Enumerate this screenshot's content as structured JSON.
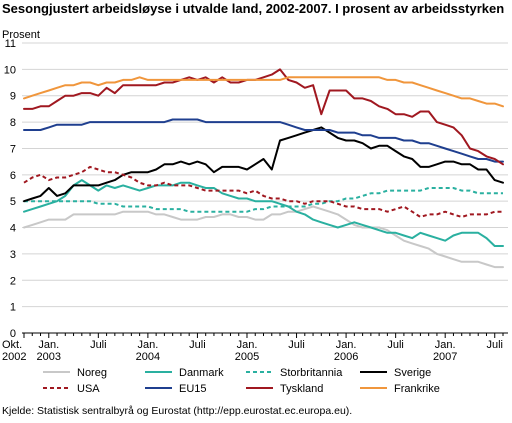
{
  "title": "Sesongjustert arbeidsløyse i utvalde land, 2002-2007. I prosent av arbeidsstyrken",
  "source": "Kjelde: Statistisk sentralbyrå og Eurostat (http://epp.eurostat.ec.europa.eu).",
  "chart_data": {
    "type": "line",
    "title": "Sesongjustert arbeidsløyse i utvalde land, 2002-2007. I prosent av arbeidsstyrken",
    "ylabel": "Prosent",
    "xlabel": "",
    "ylim": [
      0,
      11
    ],
    "yticks": [
      "0",
      "1",
      "2",
      "3",
      "4",
      "5",
      "6",
      "7",
      "8",
      "9",
      "10",
      "11"
    ],
    "grid": true,
    "x": [
      "2002-10",
      "2002-11",
      "2002-12",
      "2003-01",
      "2003-02",
      "2003-03",
      "2003-04",
      "2003-05",
      "2003-06",
      "2003-07",
      "2003-08",
      "2003-09",
      "2003-10",
      "2003-11",
      "2003-12",
      "2004-01",
      "2004-02",
      "2004-03",
      "2004-04",
      "2004-05",
      "2004-06",
      "2004-07",
      "2004-08",
      "2004-09",
      "2004-10",
      "2004-11",
      "2004-12",
      "2005-01",
      "2005-02",
      "2005-03",
      "2005-04",
      "2005-05",
      "2005-06",
      "2005-07",
      "2005-08",
      "2005-09",
      "2005-10",
      "2005-11",
      "2005-12",
      "2006-01",
      "2006-02",
      "2006-03",
      "2006-04",
      "2006-05",
      "2006-06",
      "2006-07",
      "2006-08",
      "2006-09",
      "2006-10",
      "2006-11",
      "2006-12",
      "2007-01",
      "2007-02",
      "2007-03",
      "2007-04",
      "2007-05",
      "2007-06",
      "2007-07",
      "2007-08"
    ],
    "xtick_labels": [
      {
        "index": 0,
        "lines": [
          "Okt.",
          "2002"
        ]
      },
      {
        "index": 3,
        "lines": [
          "Jan.",
          "2003"
        ]
      },
      {
        "index": 9,
        "lines": [
          "Juli"
        ]
      },
      {
        "index": 15,
        "lines": [
          "Jan.",
          "2004"
        ]
      },
      {
        "index": 21,
        "lines": [
          "Juli"
        ]
      },
      {
        "index": 27,
        "lines": [
          "Jan.",
          "2005"
        ]
      },
      {
        "index": 33,
        "lines": [
          "Juli"
        ]
      },
      {
        "index": 39,
        "lines": [
          "Jan.",
          "2006"
        ]
      },
      {
        "index": 45,
        "lines": [
          "Juli"
        ]
      },
      {
        "index": 51,
        "lines": [
          "Jan.",
          "2007"
        ]
      },
      {
        "index": 57,
        "lines": [
          "Juli"
        ]
      }
    ],
    "legend_placement": "bottom",
    "series": [
      {
        "name": "Noreg",
        "color": "#c8c8c8",
        "dash": "solid",
        "values": [
          4.0,
          4.1,
          4.2,
          4.3,
          4.3,
          4.3,
          4.5,
          4.5,
          4.5,
          4.5,
          4.5,
          4.5,
          4.6,
          4.6,
          4.6,
          4.6,
          4.5,
          4.5,
          4.4,
          4.3,
          4.3,
          4.3,
          4.4,
          4.4,
          4.5,
          4.5,
          4.4,
          4.4,
          4.3,
          4.3,
          4.5,
          4.5,
          4.6,
          4.6,
          4.7,
          4.8,
          4.7,
          4.6,
          4.5,
          4.3,
          4.1,
          4.0,
          4.0,
          4.0,
          3.9,
          3.7,
          3.5,
          3.4,
          3.3,
          3.2,
          3.0,
          2.9,
          2.8,
          2.7,
          2.7,
          2.7,
          2.6,
          2.5,
          2.5
        ]
      },
      {
        "name": "Danmark",
        "color": "#2ab0a0",
        "dash": "solid",
        "values": [
          4.6,
          4.7,
          4.8,
          4.9,
          5.0,
          5.2,
          5.6,
          5.8,
          5.6,
          5.4,
          5.6,
          5.5,
          5.6,
          5.5,
          5.4,
          5.5,
          5.6,
          5.6,
          5.6,
          5.7,
          5.7,
          5.6,
          5.5,
          5.5,
          5.3,
          5.2,
          5.1,
          5.1,
          5.0,
          5.0,
          5.0,
          4.9,
          4.8,
          4.6,
          4.5,
          4.3,
          4.2,
          4.1,
          4.0,
          4.1,
          4.2,
          4.1,
          4.0,
          3.9,
          3.8,
          3.8,
          3.7,
          3.6,
          3.8,
          3.7,
          3.6,
          3.5,
          3.7,
          3.8,
          3.8,
          3.8,
          3.6,
          3.3,
          3.3
        ]
      },
      {
        "name": "Storbritannia",
        "color": "#2ab0a0",
        "dash": "dash",
        "values": [
          5.0,
          5.0,
          5.0,
          5.0,
          5.0,
          5.0,
          5.0,
          5.0,
          5.0,
          4.9,
          4.9,
          4.9,
          4.8,
          4.8,
          4.8,
          4.8,
          4.7,
          4.7,
          4.7,
          4.7,
          4.6,
          4.6,
          4.6,
          4.6,
          4.6,
          4.6,
          4.6,
          4.6,
          4.7,
          4.7,
          4.8,
          4.8,
          4.8,
          4.8,
          4.8,
          4.9,
          4.9,
          5.0,
          5.0,
          5.1,
          5.1,
          5.2,
          5.3,
          5.3,
          5.4,
          5.4,
          5.4,
          5.4,
          5.4,
          5.5,
          5.5,
          5.5,
          5.5,
          5.4,
          5.4,
          5.3,
          5.3,
          5.3,
          5.3
        ]
      },
      {
        "name": "Sverige",
        "color": "#000000",
        "dash": "solid",
        "values": [
          5.0,
          5.1,
          5.2,
          5.5,
          5.2,
          5.3,
          5.6,
          5.6,
          5.6,
          5.6,
          5.7,
          5.8,
          6.0,
          6.1,
          6.1,
          6.1,
          6.2,
          6.4,
          6.4,
          6.5,
          6.4,
          6.5,
          6.4,
          6.1,
          6.3,
          6.3,
          6.3,
          6.2,
          6.4,
          6.6,
          6.2,
          7.3,
          7.4,
          7.5,
          7.6,
          7.7,
          7.8,
          7.6,
          7.4,
          7.3,
          7.3,
          7.2,
          7.0,
          7.1,
          7.1,
          6.9,
          6.7,
          6.6,
          6.3,
          6.3,
          6.4,
          6.5,
          6.5,
          6.4,
          6.4,
          6.2,
          6.2,
          5.8,
          5.7
        ]
      },
      {
        "name": "USA",
        "color": "#a01820",
        "dash": "dash",
        "values": [
          5.7,
          5.9,
          6.0,
          5.8,
          5.9,
          5.9,
          6.0,
          6.1,
          6.3,
          6.2,
          6.1,
          6.1,
          6.0,
          5.9,
          5.7,
          5.6,
          5.6,
          5.7,
          5.6,
          5.6,
          5.6,
          5.5,
          5.4,
          5.4,
          5.4,
          5.4,
          5.4,
          5.3,
          5.4,
          5.2,
          5.1,
          5.1,
          5.0,
          5.0,
          4.9,
          5.0,
          5.0,
          5.0,
          4.9,
          4.8,
          4.8,
          4.7,
          4.7,
          4.7,
          4.6,
          4.7,
          4.8,
          4.6,
          4.4,
          4.5,
          4.5,
          4.6,
          4.5,
          4.4,
          4.5,
          4.5,
          4.5,
          4.6,
          4.6
        ]
      },
      {
        "name": "EU15",
        "color": "#1f3f8f",
        "dash": "solid",
        "values": [
          7.7,
          7.7,
          7.7,
          7.8,
          7.9,
          7.9,
          7.9,
          7.9,
          8.0,
          8.0,
          8.0,
          8.0,
          8.0,
          8.0,
          8.0,
          8.0,
          8.0,
          8.0,
          8.1,
          8.1,
          8.1,
          8.1,
          8.0,
          8.0,
          8.0,
          8.0,
          8.0,
          8.0,
          8.0,
          8.0,
          8.0,
          8.0,
          7.9,
          7.8,
          7.7,
          7.7,
          7.7,
          7.7,
          7.6,
          7.6,
          7.6,
          7.5,
          7.5,
          7.4,
          7.4,
          7.4,
          7.3,
          7.3,
          7.2,
          7.2,
          7.1,
          7.0,
          6.9,
          6.8,
          6.7,
          6.6,
          6.6,
          6.5,
          6.5
        ]
      },
      {
        "name": "Tyskland",
        "color": "#a01820",
        "dash": "solid",
        "values": [
          8.5,
          8.5,
          8.6,
          8.6,
          8.8,
          9.0,
          9.0,
          9.1,
          9.1,
          9.0,
          9.3,
          9.1,
          9.4,
          9.4,
          9.4,
          9.4,
          9.4,
          9.5,
          9.5,
          9.6,
          9.7,
          9.6,
          9.7,
          9.5,
          9.7,
          9.5,
          9.5,
          9.6,
          9.6,
          9.7,
          9.8,
          10.0,
          9.6,
          9.5,
          9.3,
          9.4,
          8.3,
          9.2,
          9.2,
          9.2,
          8.9,
          8.9,
          8.8,
          8.6,
          8.5,
          8.3,
          8.3,
          8.2,
          8.4,
          8.4,
          8.0,
          7.9,
          7.8,
          7.5,
          7.0,
          6.9,
          6.7,
          6.6,
          6.4
        ]
      },
      {
        "name": "Frankrike",
        "color": "#f0963c",
        "dash": "solid",
        "values": [
          8.9,
          9.0,
          9.1,
          9.2,
          9.3,
          9.4,
          9.4,
          9.5,
          9.5,
          9.4,
          9.5,
          9.5,
          9.6,
          9.6,
          9.7,
          9.6,
          9.6,
          9.6,
          9.6,
          9.6,
          9.6,
          9.6,
          9.6,
          9.6,
          9.6,
          9.6,
          9.6,
          9.6,
          9.6,
          9.6,
          9.6,
          9.6,
          9.7,
          9.7,
          9.7,
          9.7,
          9.7,
          9.7,
          9.7,
          9.7,
          9.7,
          9.7,
          9.7,
          9.7,
          9.6,
          9.6,
          9.5,
          9.5,
          9.4,
          9.3,
          9.2,
          9.1,
          9.0,
          8.9,
          8.9,
          8.8,
          8.7,
          8.7,
          8.6
        ]
      }
    ],
    "legend_order": [
      "Noreg",
      "Danmark",
      "Storbritannia",
      "Sverige",
      "USA",
      "EU15",
      "Tyskland",
      "Frankrike"
    ]
  }
}
